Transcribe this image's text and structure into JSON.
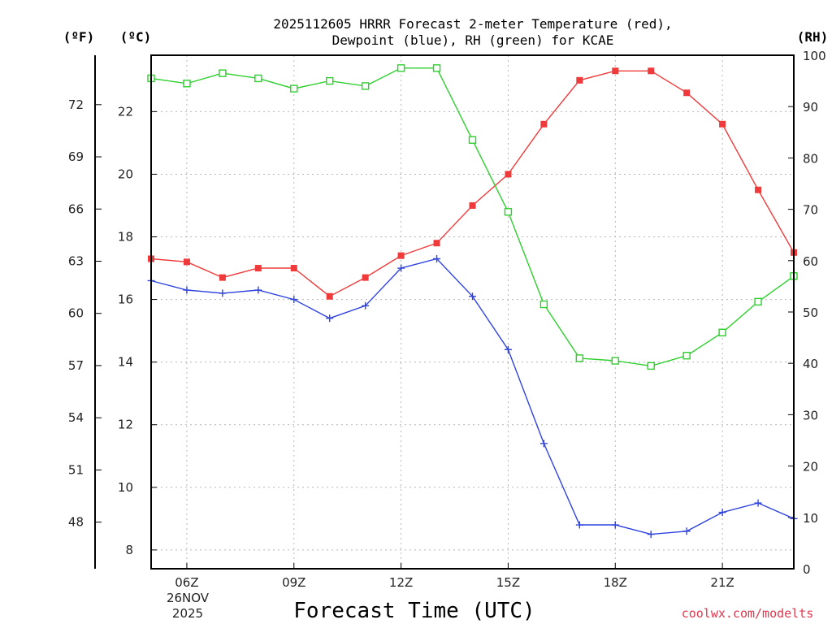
{
  "colors": {
    "temperature": "#ee3a3a",
    "dewpoint": "#2f43e0",
    "rh": "#2ecf2e",
    "credit": "#e0384e"
  },
  "chart_data": {
    "type": "line",
    "title_line1": "2025112605 HRRR Forecast 2-meter Temperature (red),",
    "title_line2": "Dewpoint (blue), RH (green) for KCAE",
    "xlabel": "Forecast Time (UTC)",
    "credit": "coolwx.com/modelts",
    "unit_labels": {
      "fahrenheit": "(ºF)",
      "celsius": "(ºC)",
      "rh": "(RH)"
    },
    "x_hours": [
      5,
      6,
      7,
      8,
      9,
      10,
      11,
      12,
      13,
      14,
      15,
      16,
      17,
      18,
      19,
      20,
      21,
      22,
      23
    ],
    "xlim": [
      5,
      23
    ],
    "x_ticks": [
      {
        "hour": 6,
        "label": "06Z"
      },
      {
        "hour": 9,
        "label": "09Z"
      },
      {
        "hour": 12,
        "label": "12Z"
      },
      {
        "hour": 15,
        "label": "15Z"
      },
      {
        "hour": 18,
        "label": "18Z"
      },
      {
        "hour": 21,
        "label": "21Z"
      }
    ],
    "date_label_line1": "26NOV",
    "date_label_line2": "2025",
    "celsius_ylim": [
      7.4,
      23.8
    ],
    "celsius_ticks": [
      8,
      10,
      12,
      14,
      16,
      18,
      20,
      22
    ],
    "fahrenheit_ticks": [
      48,
      51,
      54,
      57,
      60,
      63,
      66,
      69,
      72
    ],
    "rh_ylim": [
      0,
      100
    ],
    "rh_ticks": [
      0,
      10,
      20,
      30,
      40,
      50,
      60,
      70,
      80,
      90,
      100
    ],
    "series": [
      {
        "name": "Temperature",
        "axis": "celsius",
        "marker": "filled-square",
        "color_key": "temperature",
        "values": [
          17.3,
          17.2,
          16.7,
          17.0,
          17.0,
          16.1,
          16.7,
          17.4,
          17.8,
          19.0,
          20.0,
          21.6,
          23.0,
          23.3,
          23.3,
          22.6,
          21.6,
          19.5,
          17.5
        ]
      },
      {
        "name": "Dewpoint",
        "axis": "celsius",
        "marker": "plus",
        "color_key": "dewpoint",
        "values": [
          16.6,
          16.3,
          16.2,
          16.3,
          16.0,
          15.4,
          15.8,
          17.0,
          17.3,
          16.1,
          14.4,
          11.4,
          8.8,
          8.8,
          8.5,
          8.6,
          9.2,
          9.5,
          9.0
        ]
      },
      {
        "name": "RH",
        "axis": "rh",
        "marker": "open-square",
        "color_key": "rh",
        "values": [
          95.5,
          94.5,
          96.5,
          95.5,
          93.5,
          95.0,
          94.0,
          97.5,
          97.5,
          83.5,
          69.5,
          51.5,
          41.0,
          40.5,
          39.5,
          41.5,
          46.0,
          52.0,
          57.0
        ]
      }
    ]
  }
}
